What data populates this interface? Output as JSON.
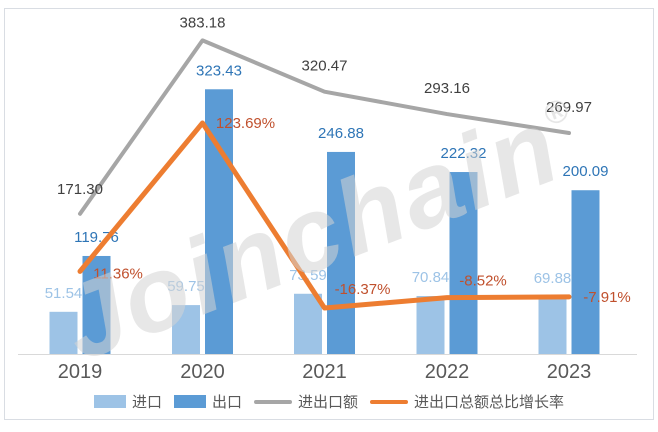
{
  "watermark": {
    "text": "Joinchain",
    "reg": "®"
  },
  "legend": {
    "items": [
      {
        "key": "imports",
        "label": "进口",
        "swatch": "rect",
        "color": "#9DC3E6"
      },
      {
        "key": "exports",
        "label": "出口",
        "swatch": "rect",
        "color": "#5B9BD5"
      },
      {
        "key": "total",
        "label": "进出口额",
        "swatch": "line",
        "color": "#A6A6A6"
      },
      {
        "key": "growth-rate",
        "label": "进出口总额总比增长率",
        "swatch": "line",
        "color": "#ED7D31"
      }
    ]
  },
  "chart_data": {
    "type": "combo",
    "title": "",
    "categories": [
      "2019",
      "2020",
      "2021",
      "2022",
      "2023"
    ],
    "series": [
      {
        "name": "进口",
        "type": "bar",
        "values": [
          51.54,
          59.75,
          73.59,
          70.84,
          69.88
        ],
        "color": "#9DC3E6",
        "label_color": "#9DC3E6"
      },
      {
        "name": "出口",
        "type": "bar",
        "values": [
          119.76,
          323.43,
          246.88,
          222.32,
          200.09
        ],
        "color": "#5B9BD5",
        "label_color": "#2E75B6"
      },
      {
        "name": "进出口额",
        "type": "line",
        "values": [
          171.3,
          383.18,
          320.47,
          293.16,
          269.97
        ],
        "color": "#A6A6A6",
        "label_color": "#404040"
      },
      {
        "name": "进出口总额总比增长率",
        "type": "line",
        "axis": "secondary",
        "values": [
          11.36,
          123.69,
          -16.37,
          -8.52,
          -7.91
        ],
        "labels": [
          "11.36%",
          "123.69%",
          "-16.37%",
          "-8.52%",
          "-7.91%"
        ],
        "color": "#ED7D31",
        "label_color": "#C0502D"
      }
    ],
    "value_label_decimals": 2,
    "axes": {
      "x_labels": [
        "2019",
        "2020",
        "2021",
        "2022",
        "2023"
      ],
      "x_label_color": "#595959",
      "primary_value_axis_visible": false,
      "secondary_value_axis_visible": false,
      "axis_line_color": "#D9D9D9"
    },
    "grid": false,
    "legend_position": "bottom"
  }
}
